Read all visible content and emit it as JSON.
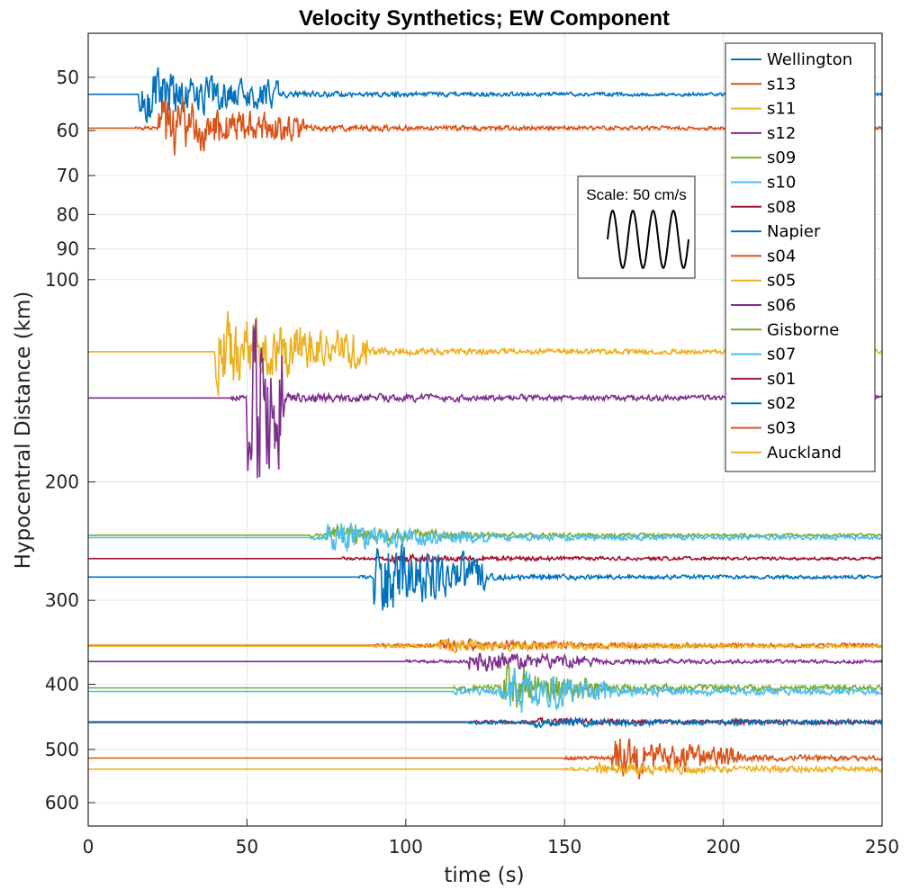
{
  "chart_data": {
    "type": "line",
    "title": "Velocity Synthetics; EW Component",
    "xlabel": "time (s)",
    "ylabel": "Hypocentral Distance (km)",
    "xlim": [
      0,
      250
    ],
    "ylim": [
      43,
      650
    ],
    "yscale": "log",
    "grid": true,
    "legend_position": "top-right",
    "x_ticks": [
      0,
      50,
      100,
      150,
      200,
      250
    ],
    "y_ticks": [
      50,
      60,
      70,
      80,
      90,
      100,
      200,
      300,
      400,
      500,
      600
    ],
    "scale_box": {
      "label": "Scale: 50 cm/s"
    },
    "series": [
      {
        "name": "Wellington",
        "color": "#0072BD",
        "distance_km": 53,
        "onset_s": 16,
        "strong_start_s": 16,
        "strong_end_s": 60,
        "peak_amp_km": 5,
        "coda_amp_km": 0.5
      },
      {
        "name": "s13",
        "color": "#D95319",
        "distance_km": 59.5,
        "onset_s": 15,
        "strong_start_s": 22,
        "strong_end_s": 68,
        "peak_amp_km": 6,
        "coda_amp_km": 0.6
      },
      {
        "name": "s11",
        "color": "#EDB120",
        "distance_km": 128,
        "onset_s": 40,
        "strong_start_s": 40,
        "strong_end_s": 88,
        "peak_amp_km": 18,
        "coda_amp_km": 1.5
      },
      {
        "name": "s12",
        "color": "#7E2F8E",
        "distance_km": 150,
        "onset_s": 45,
        "strong_start_s": 50,
        "strong_end_s": 62,
        "peak_amp_km": 70,
        "coda_amp_km": 2
      },
      {
        "name": "s09",
        "color": "#77AC30",
        "distance_km": 240,
        "onset_s": 70,
        "strong_start_s": 75,
        "strong_end_s": 120,
        "peak_amp_km": 8,
        "coda_amp_km": 2
      },
      {
        "name": "s10",
        "color": "#4DBEEE",
        "distance_km": 242,
        "onset_s": 70,
        "strong_start_s": 75,
        "strong_end_s": 125,
        "peak_amp_km": 12,
        "coda_amp_km": 2.5
      },
      {
        "name": "s08",
        "color": "#A2142F",
        "distance_km": 260,
        "onset_s": 80,
        "strong_start_s": 95,
        "strong_end_s": 115,
        "peak_amp_km": 5,
        "coda_amp_km": 2
      },
      {
        "name": "Napier",
        "color": "#0072BD",
        "distance_km": 277,
        "onset_s": 85,
        "strong_start_s": 90,
        "strong_end_s": 125,
        "peak_amp_km": 40,
        "coda_amp_km": 2.5
      },
      {
        "name": "s04",
        "color": "#D95319",
        "distance_km": 350,
        "onset_s": 90,
        "strong_start_s": 110,
        "strong_end_s": 160,
        "peak_amp_km": 8,
        "coda_amp_km": 3
      },
      {
        "name": "s05",
        "color": "#EDB120",
        "distance_km": 351,
        "onset_s": 90,
        "strong_start_s": 110,
        "strong_end_s": 160,
        "peak_amp_km": 8,
        "coda_amp_km": 3
      },
      {
        "name": "s06",
        "color": "#7E2F8E",
        "distance_km": 370,
        "onset_s": 100,
        "strong_start_s": 120,
        "strong_end_s": 160,
        "peak_amp_km": 15,
        "coda_amp_km": 3
      },
      {
        "name": "Gisborne",
        "color": "#77AC30",
        "distance_km": 405,
        "onset_s": 115,
        "strong_start_s": 130,
        "strong_end_s": 160,
        "peak_amp_km": 35,
        "coda_amp_km": 5
      },
      {
        "name": "s07",
        "color": "#4DBEEE",
        "distance_km": 410,
        "onset_s": 115,
        "strong_start_s": 130,
        "strong_end_s": 165,
        "peak_amp_km": 35,
        "coda_amp_km": 6
      },
      {
        "name": "s01",
        "color": "#A2142F",
        "distance_km": 455,
        "onset_s": 120,
        "strong_start_s": 140,
        "strong_end_s": 200,
        "peak_amp_km": 6,
        "coda_amp_km": 4
      },
      {
        "name": "s02",
        "color": "#0072BD",
        "distance_km": 456,
        "onset_s": 120,
        "strong_start_s": 140,
        "strong_end_s": 200,
        "peak_amp_km": 8,
        "coda_amp_km": 4
      },
      {
        "name": "s03",
        "color": "#D95319",
        "distance_km": 515,
        "onset_s": 150,
        "strong_start_s": 165,
        "strong_end_s": 205,
        "peak_amp_km": 40,
        "coda_amp_km": 5
      },
      {
        "name": "Auckland",
        "color": "#EDB120",
        "distance_km": 535,
        "onset_s": 150,
        "strong_start_s": 160,
        "strong_end_s": 220,
        "peak_amp_km": 12,
        "coda_amp_km": 5
      }
    ]
  }
}
